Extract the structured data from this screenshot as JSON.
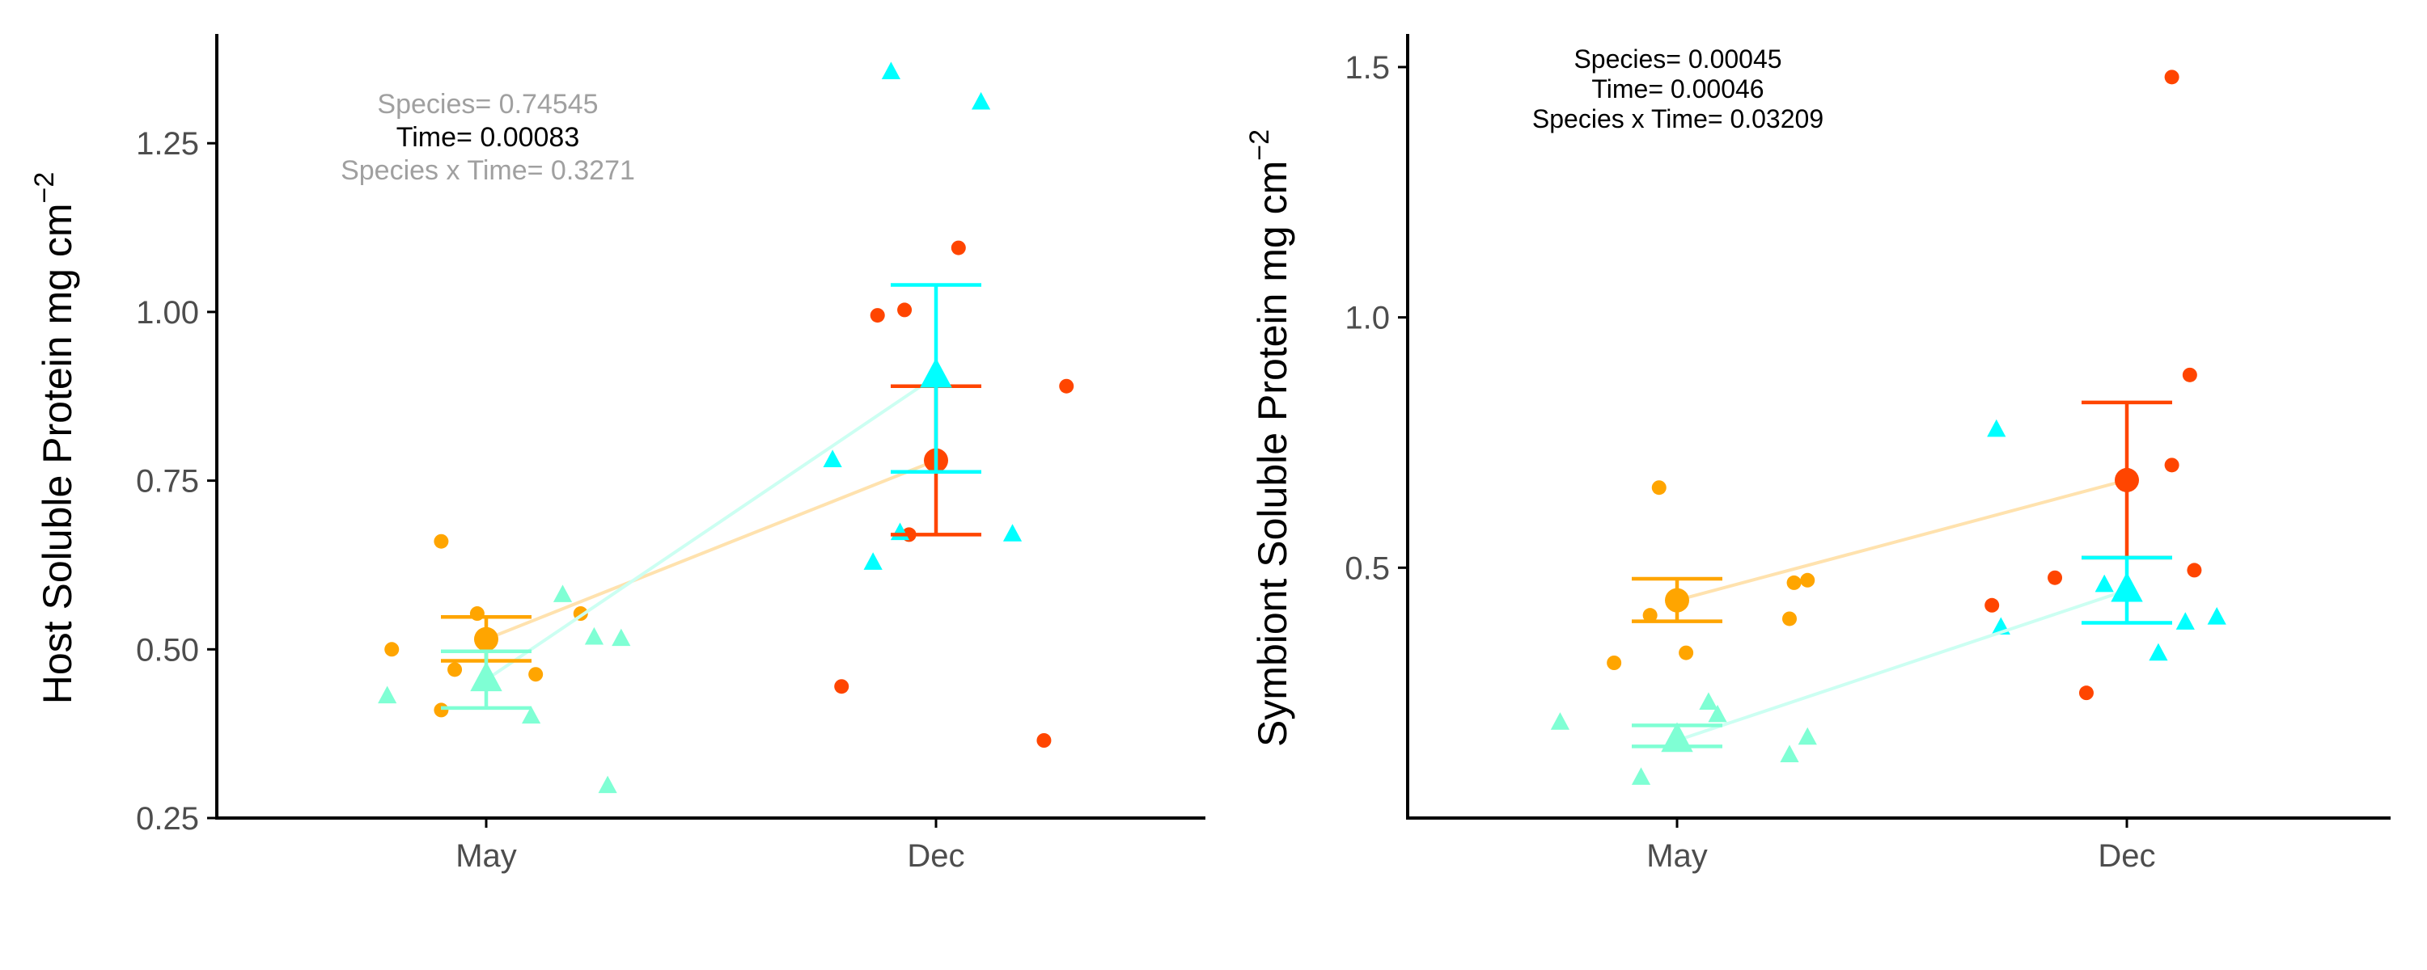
{
  "colors": {
    "orange_may": "#FFA500",
    "orange_dec": "#FF4500",
    "cyan_dec": "#00FFFF",
    "aqua_may": "#7FFFD4",
    "axis": "#000000",
    "tick_text": "#4D4D4D",
    "stat_grey": "#A0A0A0",
    "stat_black": "#000000"
  },
  "chart_data": [
    {
      "type": "scatter",
      "ylabel": "Host Soluble Protein mg cm",
      "ylabel_sup": "−2",
      "categories": [
        "May",
        "Dec"
      ],
      "ylim": [
        0.25,
        1.4
      ],
      "yticks": [
        0.25,
        0.5,
        0.75,
        1.0,
        1.25
      ],
      "ytick_labels": [
        "0.25",
        "0.50",
        "0.75",
        "1.00",
        "1.25"
      ],
      "annotations": [
        {
          "text": "Species= 0.74545",
          "color": "grey"
        },
        {
          "text": "Time= 0.00083",
          "color": "black"
        },
        {
          "text": "Species x Time= 0.3271",
          "color": "grey"
        }
      ],
      "series": [
        {
          "marker": "circle",
          "means": [
            {
              "x": "May",
              "mean": 0.515,
              "lo": 0.483,
              "hi": 0.548,
              "color": "#FFA500"
            },
            {
              "x": "Dec",
              "mean": 0.78,
              "lo": 0.67,
              "hi": 0.89,
              "color": "#FF4500"
            }
          ],
          "points": [
            {
              "x": "May",
              "dx": -0.21,
              "y": 0.5,
              "color": "#FFA500"
            },
            {
              "x": "May",
              "dx": -0.1,
              "y": 0.66,
              "color": "#FFA500"
            },
            {
              "x": "May",
              "dx": -0.07,
              "y": 0.47,
              "color": "#FFA500"
            },
            {
              "x": "May",
              "dx": -0.1,
              "y": 0.41,
              "color": "#FFA500"
            },
            {
              "x": "May",
              "dx": -0.02,
              "y": 0.553,
              "color": "#FFA500"
            },
            {
              "x": "May",
              "dx": 0.21,
              "y": 0.553,
              "color": "#FFA500"
            },
            {
              "x": "May",
              "dx": 0.11,
              "y": 0.463,
              "color": "#FFA500"
            },
            {
              "x": "Dec",
              "dx": -0.21,
              "y": 0.445,
              "color": "#FF4500"
            },
            {
              "x": "Dec",
              "dx": -0.13,
              "y": 0.995,
              "color": "#FF4500"
            },
            {
              "x": "Dec",
              "dx": -0.07,
              "y": 1.003,
              "color": "#FF4500"
            },
            {
              "x": "Dec",
              "dx": 0.05,
              "y": 1.095,
              "color": "#FF4500"
            },
            {
              "x": "Dec",
              "dx": 0.29,
              "y": 0.89,
              "color": "#FF4500"
            },
            {
              "x": "Dec",
              "dx": -0.06,
              "y": 0.67,
              "color": "#FF4500"
            },
            {
              "x": "Dec",
              "dx": 0.24,
              "y": 0.365,
              "color": "#FF4500"
            }
          ]
        },
        {
          "marker": "triangle",
          "means": [
            {
              "x": "May",
              "mean": 0.455,
              "lo": 0.413,
              "hi": 0.497,
              "color": "#7FFFD4"
            },
            {
              "x": "Dec",
              "mean": 0.905,
              "lo": 0.763,
              "hi": 1.04,
              "color": "#00FFFF"
            }
          ],
          "points": [
            {
              "x": "May",
              "dx": -0.22,
              "y": 0.43,
              "color": "#7FFFD4"
            },
            {
              "x": "May",
              "dx": 0.1,
              "y": 0.4,
              "color": "#7FFFD4"
            },
            {
              "x": "May",
              "dx": 0.17,
              "y": 0.58,
              "color": "#7FFFD4"
            },
            {
              "x": "May",
              "dx": 0.24,
              "y": 0.517,
              "color": "#7FFFD4"
            },
            {
              "x": "May",
              "dx": 0.3,
              "y": 0.515,
              "color": "#7FFFD4"
            },
            {
              "x": "May",
              "dx": 0.27,
              "y": 0.297,
              "color": "#7FFFD4"
            },
            {
              "x": "Dec",
              "dx": -0.1,
              "y": 1.355,
              "color": "#00FFFF"
            },
            {
              "x": "Dec",
              "dx": 0.1,
              "y": 1.31,
              "color": "#00FFFF"
            },
            {
              "x": "Dec",
              "dx": -0.23,
              "y": 0.78,
              "color": "#00FFFF"
            },
            {
              "x": "Dec",
              "dx": -0.14,
              "y": 0.628,
              "color": "#00FFFF"
            },
            {
              "x": "Dec",
              "dx": -0.08,
              "y": 0.672,
              "color": "#00FFFF"
            },
            {
              "x": "Dec",
              "dx": 0.17,
              "y": 0.67,
              "color": "#00FFFF"
            }
          ]
        }
      ]
    },
    {
      "type": "scatter",
      "ylabel": "Symbiont Soluble Protein mg cm",
      "ylabel_sup": "−2",
      "categories": [
        "May",
        "Dec"
      ],
      "ylim": [
        0.0,
        1.55
      ],
      "yticks": [
        0.5,
        1.0,
        1.5
      ],
      "ytick_labels": [
        "0.5",
        "1.0",
        "1.5"
      ],
      "annotations": [
        {
          "text": "Species= 0.00045",
          "color": "black"
        },
        {
          "text": "Time= 0.00046",
          "color": "black"
        },
        {
          "text": "Species x Time= 0.03209",
          "color": "black"
        }
      ],
      "series": [
        {
          "marker": "circle",
          "means": [
            {
              "x": "May",
              "mean": 0.435,
              "lo": 0.393,
              "hi": 0.478,
              "color": "#FFA500"
            },
            {
              "x": "Dec",
              "mean": 0.675,
              "lo": 0.52,
              "hi": 0.83,
              "color": "#FF4500"
            }
          ],
          "points": [
            {
              "x": "May",
              "dx": -0.14,
              "y": 0.31,
              "color": "#FFA500"
            },
            {
              "x": "May",
              "dx": -0.06,
              "y": 0.405,
              "color": "#FFA500"
            },
            {
              "x": "May",
              "dx": -0.04,
              "y": 0.66,
              "color": "#FFA500"
            },
            {
              "x": "May",
              "dx": 0.02,
              "y": 0.33,
              "color": "#FFA500"
            },
            {
              "x": "May",
              "dx": 0.25,
              "y": 0.398,
              "color": "#FFA500"
            },
            {
              "x": "May",
              "dx": 0.26,
              "y": 0.47,
              "color": "#FFA500"
            },
            {
              "x": "May",
              "dx": 0.29,
              "y": 0.475,
              "color": "#FFA500"
            },
            {
              "x": "Dec",
              "dx": -0.3,
              "y": 0.425,
              "color": "#FF4500"
            },
            {
              "x": "Dec",
              "dx": -0.16,
              "y": 0.48,
              "color": "#FF4500"
            },
            {
              "x": "Dec",
              "dx": -0.09,
              "y": 0.25,
              "color": "#FF4500"
            },
            {
              "x": "Dec",
              "dx": 0.1,
              "y": 0.705,
              "color": "#FF4500"
            },
            {
              "x": "Dec",
              "dx": 0.1,
              "y": 1.48,
              "color": "#FF4500"
            },
            {
              "x": "Dec",
              "dx": 0.14,
              "y": 0.885,
              "color": "#FF4500"
            },
            {
              "x": "Dec",
              "dx": 0.15,
              "y": 0.495,
              "color": "#FF4500"
            }
          ]
        },
        {
          "marker": "triangle",
          "means": [
            {
              "x": "May",
              "mean": 0.155,
              "lo": 0.143,
              "hi": 0.185,
              "color": "#7FFFD4"
            },
            {
              "x": "Dec",
              "mean": 0.455,
              "lo": 0.39,
              "hi": 0.52,
              "color": "#00FFFF"
            }
          ],
          "points": [
            {
              "x": "May",
              "dx": -0.26,
              "y": 0.19,
              "color": "#7FFFD4"
            },
            {
              "x": "May",
              "dx": -0.08,
              "y": 0.08,
              "color": "#7FFFD4"
            },
            {
              "x": "May",
              "dx": 0.07,
              "y": 0.23,
              "color": "#7FFFD4"
            },
            {
              "x": "May",
              "dx": 0.09,
              "y": 0.205,
              "color": "#7FFFD4"
            },
            {
              "x": "May",
              "dx": 0.25,
              "y": 0.125,
              "color": "#7FFFD4"
            },
            {
              "x": "May",
              "dx": 0.29,
              "y": 0.16,
              "color": "#7FFFD4"
            },
            {
              "x": "Dec",
              "dx": -0.29,
              "y": 0.775,
              "color": "#00FFFF"
            },
            {
              "x": "Dec",
              "dx": -0.28,
              "y": 0.38,
              "color": "#00FFFF"
            },
            {
              "x": "Dec",
              "dx": -0.05,
              "y": 0.465,
              "color": "#00FFFF"
            },
            {
              "x": "Dec",
              "dx": 0.07,
              "y": 0.328,
              "color": "#00FFFF"
            },
            {
              "x": "Dec",
              "dx": 0.13,
              "y": 0.39,
              "color": "#00FFFF"
            },
            {
              "x": "Dec",
              "dx": 0.2,
              "y": 0.4,
              "color": "#00FFFF"
            }
          ]
        }
      ]
    }
  ]
}
